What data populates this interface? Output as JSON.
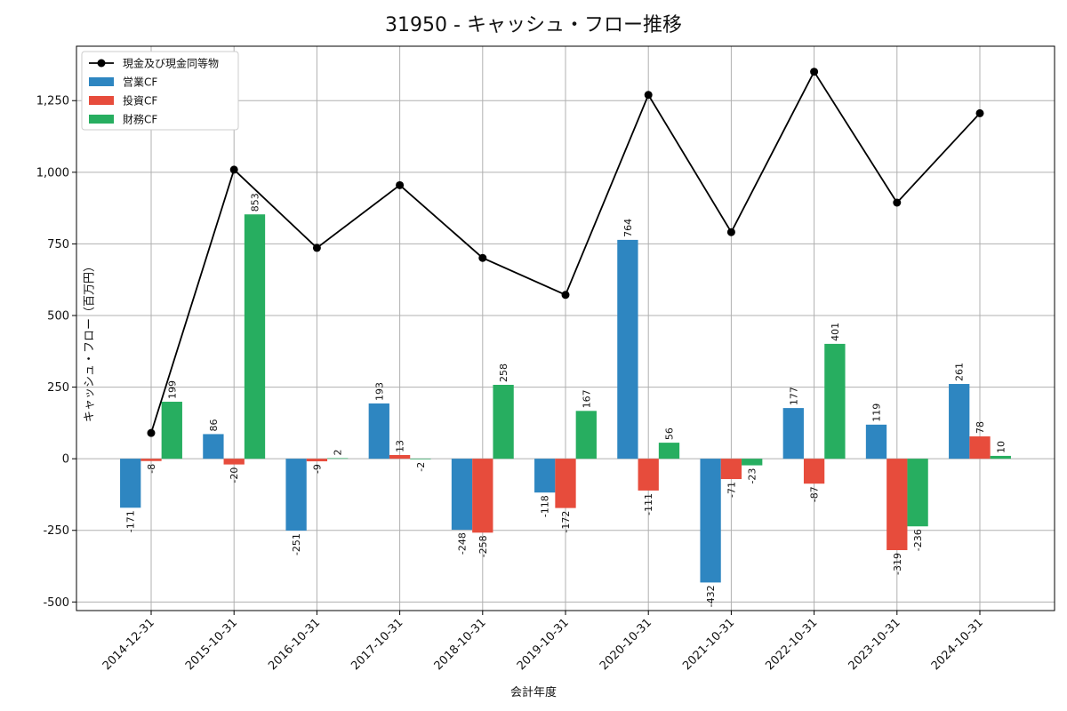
{
  "chart_data": {
    "type": "bar",
    "title": "31950 - キャッシュ・フロー推移",
    "xlabel": "会計年度",
    "ylabel": "キャッシュ・フロー（百万円）",
    "categories": [
      "2014-12-31",
      "2015-10-31",
      "2016-10-31",
      "2017-10-31",
      "2018-10-31",
      "2019-10-31",
      "2020-10-31",
      "2021-10-31",
      "2022-10-31",
      "2023-10-31",
      "2024-10-31"
    ],
    "yticks": [
      -500,
      -250,
      0,
      250,
      500,
      750,
      1000,
      1250
    ],
    "ytick_labels": [
      "-500",
      "-250",
      "0",
      "250",
      "500",
      "750",
      "1,000",
      "1,250"
    ],
    "ylim": [
      -530,
      1440
    ],
    "grid": true,
    "legend_position": "top-left",
    "series": [
      {
        "name": "営業CF",
        "kind": "bar",
        "color": "#2e86c1",
        "values": [
          -171,
          86,
          -251,
          193,
          -248,
          -118,
          764,
          -432,
          177,
          119,
          261
        ]
      },
      {
        "name": "投資CF",
        "kind": "bar",
        "color": "#e74c3c",
        "values": [
          -8,
          -20,
          -9,
          13,
          -258,
          -172,
          -111,
          -71,
          -87,
          -319,
          78
        ]
      },
      {
        "name": "財務CF",
        "kind": "bar",
        "color": "#27ae60",
        "values": [
          199,
          853,
          2,
          -2,
          258,
          167,
          56,
          -23,
          401,
          -236,
          10
        ]
      },
      {
        "name": "現金及び現金同等物",
        "kind": "line",
        "color": "#000000",
        "values": [
          90,
          1009,
          736,
          955,
          701,
          572,
          1270,
          791,
          1351,
          894,
          1206
        ]
      }
    ]
  }
}
